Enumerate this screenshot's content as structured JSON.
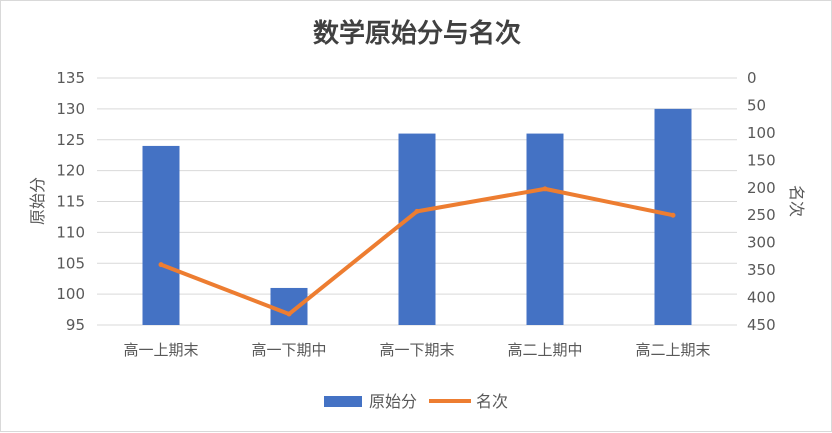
{
  "chart_data": {
    "type": "bar",
    "title": "数学原始分与名次",
    "categories": [
      "高一上期末",
      "高一下期中",
      "高一下期末",
      "高二上期中",
      "高二上期末"
    ],
    "series": [
      {
        "name": "原始分",
        "type": "bar",
        "axis": "left",
        "color": "#4472C4",
        "values": [
          124,
          101,
          126,
          126,
          130
        ]
      },
      {
        "name": "名次",
        "type": "line",
        "axis": "right",
        "color": "#ED7D31",
        "values": [
          340,
          430,
          243,
          202,
          250
        ]
      }
    ],
    "y_left": {
      "label": "原始分",
      "min": 95,
      "max": 135,
      "step": 5
    },
    "y_right": {
      "label": "名次",
      "min": 0,
      "max": 450,
      "step": 50,
      "reversed": true
    },
    "grid": true,
    "legend": "bottom"
  }
}
